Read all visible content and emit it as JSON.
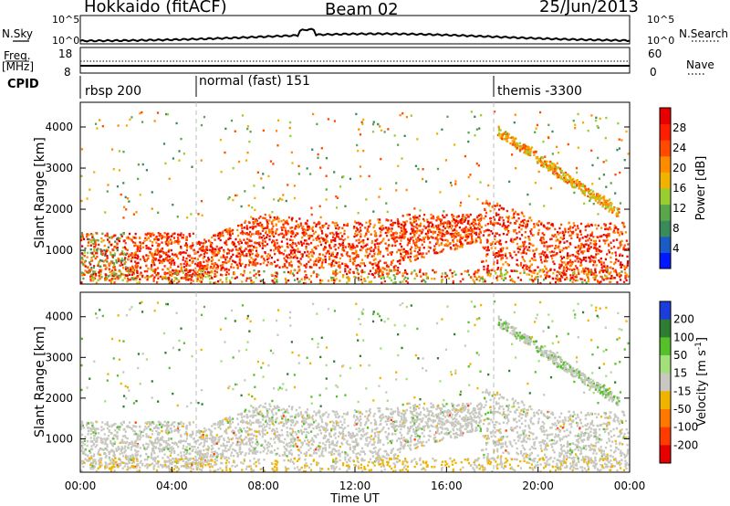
{
  "header": {
    "station": "Hokkaido (fitACF)",
    "beam": "Beam 02",
    "date": "25/Jun/2013"
  },
  "side_labels": {
    "nsky": "N.Sky",
    "nsearch": "N.Search",
    "freq": "Freq.",
    "freq_unit": "[MHz]",
    "nave": "Nave",
    "cpid": "CPID"
  },
  "noise_panel": {
    "y_ticks": [
      "10^5",
      "10^0"
    ],
    "right_ticks": [
      "10^5",
      "10^0"
    ]
  },
  "freq_panel": {
    "left_ticks": [
      "18",
      "8"
    ],
    "right_ticks": [
      "60",
      "0"
    ]
  },
  "cpid_modes": [
    {
      "label": "rbsp 200",
      "start_hour": 0
    },
    {
      "label": "normal (fast) 151",
      "start_hour": 5.0
    },
    {
      "label": "themis -3300",
      "start_hour": 18.0
    }
  ],
  "colors": {
    "power": [
      "#0018ff",
      "#1a5cc4",
      "#3a8a5a",
      "#5aa64a",
      "#9acd32",
      "#f0b400",
      "#ff8c00",
      "#ff4a00",
      "#ff1e00",
      "#e60000"
    ],
    "velocity": [
      "#1e3cdc",
      "#2e7d32",
      "#55c02a",
      "#a3e07a",
      "#c8c8c0",
      "#f0b400",
      "#ff7800",
      "#ff3c00",
      "#e60000"
    ]
  },
  "chart_data": [
    {
      "type": "heatmap",
      "name": "power",
      "xlabel": "",
      "ylabel": "Slant Range [km]",
      "ylim": [
        180,
        4600
      ],
      "xlim": [
        0,
        24
      ],
      "y_ticks": [
        1000,
        2000,
        3000,
        4000
      ],
      "colorbar_label": "Power [dB]",
      "colorbar_ticks": [
        4,
        8,
        12,
        16,
        20,
        24,
        28
      ],
      "colorbar_range": [
        0,
        32
      ]
    },
    {
      "type": "heatmap",
      "name": "velocity",
      "xlabel": "Time UT",
      "ylabel": "Slant Range [km]",
      "ylim": [
        180,
        4600
      ],
      "xlim": [
        0,
        24
      ],
      "y_ticks": [
        1000,
        2000,
        3000,
        4000
      ],
      "x_ticks": [
        "00:00",
        "04:00",
        "08:00",
        "12:00",
        "16:00",
        "20:00",
        "00:00"
      ],
      "colorbar_label": "Velocity [m s",
      "colorbar_label_sup": "-1",
      "colorbar_label_end": "]",
      "colorbar_ticks": [
        "200",
        "100",
        "50",
        "15",
        "-15",
        "-50",
        "-100",
        "-200"
      ]
    }
  ]
}
